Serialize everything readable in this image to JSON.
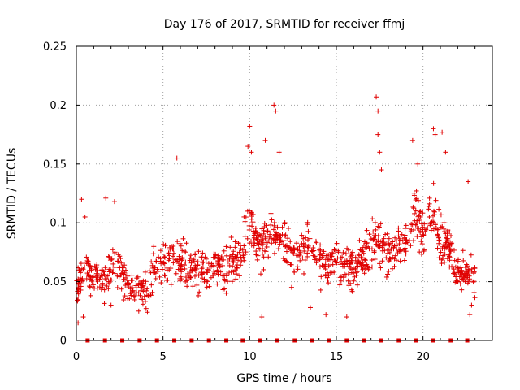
{
  "chart_data": {
    "type": "scatter",
    "title": "Day 176 of 2017, SRMTID for receiver ffmj",
    "xlabel": "GPS time / hours",
    "ylabel": "SRMTID / TECUs",
    "xlim": [
      0,
      24
    ],
    "ylim": [
      0,
      0.25
    ],
    "xticks": [
      0,
      5,
      10,
      15,
      20
    ],
    "xtick_labels": [
      "0",
      "5",
      "10",
      "15",
      "20"
    ],
    "yticks": [
      0,
      0.05,
      0.1,
      0.15,
      0.2,
      0.25
    ],
    "ytick_labels": [
      "0",
      "0.05",
      "0.1",
      "0.15",
      "0.2",
      "0.25"
    ],
    "grid": true,
    "marker": "+",
    "color": "#e00000",
    "trend": [
      [
        0.0,
        0.045
      ],
      [
        0.5,
        0.06
      ],
      [
        1.0,
        0.055
      ],
      [
        1.5,
        0.05
      ],
      [
        2.0,
        0.06
      ],
      [
        2.5,
        0.065
      ],
      [
        3.0,
        0.048
      ],
      [
        3.5,
        0.045
      ],
      [
        4.0,
        0.042
      ],
      [
        4.5,
        0.06
      ],
      [
        5.0,
        0.065
      ],
      [
        5.5,
        0.072
      ],
      [
        6.0,
        0.07
      ],
      [
        6.5,
        0.065
      ],
      [
        7.0,
        0.06
      ],
      [
        7.5,
        0.058
      ],
      [
        8.0,
        0.062
      ],
      [
        8.5,
        0.06
      ],
      [
        9.0,
        0.068
      ],
      [
        9.5,
        0.075
      ],
      [
        10.0,
        0.1
      ],
      [
        10.5,
        0.08
      ],
      [
        11.0,
        0.085
      ],
      [
        11.5,
        0.085
      ],
      [
        12.0,
        0.09
      ],
      [
        12.5,
        0.07
      ],
      [
        13.0,
        0.075
      ],
      [
        13.5,
        0.08
      ],
      [
        14.0,
        0.075
      ],
      [
        14.5,
        0.06
      ],
      [
        15.0,
        0.065
      ],
      [
        15.5,
        0.06
      ],
      [
        16.0,
        0.062
      ],
      [
        16.5,
        0.065
      ],
      [
        17.0,
        0.08
      ],
      [
        17.5,
        0.085
      ],
      [
        18.0,
        0.075
      ],
      [
        18.5,
        0.08
      ],
      [
        19.0,
        0.085
      ],
      [
        19.5,
        0.11
      ],
      [
        20.0,
        0.09
      ],
      [
        20.5,
        0.11
      ],
      [
        21.0,
        0.085
      ],
      [
        21.5,
        0.08
      ],
      [
        22.0,
        0.055
      ],
      [
        22.5,
        0.06
      ],
      [
        23.0,
        0.055
      ]
    ],
    "sample_count": 1150,
    "points": [
      [
        0.3,
        0.12
      ],
      [
        0.5,
        0.105
      ],
      [
        1.7,
        0.121
      ],
      [
        2.2,
        0.118
      ],
      [
        5.8,
        0.155
      ],
      [
        9.9,
        0.165
      ],
      [
        10.0,
        0.182
      ],
      [
        10.1,
        0.16
      ],
      [
        10.9,
        0.17
      ],
      [
        11.4,
        0.2
      ],
      [
        11.5,
        0.195
      ],
      [
        11.7,
        0.16
      ],
      [
        17.3,
        0.207
      ],
      [
        17.4,
        0.195
      ],
      [
        17.4,
        0.175
      ],
      [
        17.5,
        0.16
      ],
      [
        17.6,
        0.145
      ],
      [
        19.4,
        0.17
      ],
      [
        19.7,
        0.15
      ],
      [
        20.6,
        0.18
      ],
      [
        20.7,
        0.175
      ],
      [
        21.1,
        0.177
      ],
      [
        21.3,
        0.16
      ],
      [
        22.6,
        0.135
      ],
      [
        0.1,
        0.015
      ],
      [
        0.4,
        0.02
      ],
      [
        10.7,
        0.02
      ],
      [
        13.5,
        0.028
      ],
      [
        14.4,
        0.022
      ],
      [
        15.6,
        0.02
      ],
      [
        22.7,
        0.022
      ],
      [
        22.8,
        0.03
      ],
      [
        2.0,
        0.03
      ],
      [
        3.6,
        0.025
      ],
      [
        4.1,
        0.024
      ]
    ],
    "bottom_markers_x": [
      0.65,
      1.65,
      2.65,
      3.65,
      4.65,
      5.65,
      6.65,
      7.65,
      8.65,
      9.6,
      10.6,
      11.6,
      12.6,
      13.6,
      14.6,
      15.6,
      16.6,
      17.6,
      18.6,
      19.6,
      20.6,
      21.6,
      22.55
    ],
    "bottom_markers_y": 0
  }
}
